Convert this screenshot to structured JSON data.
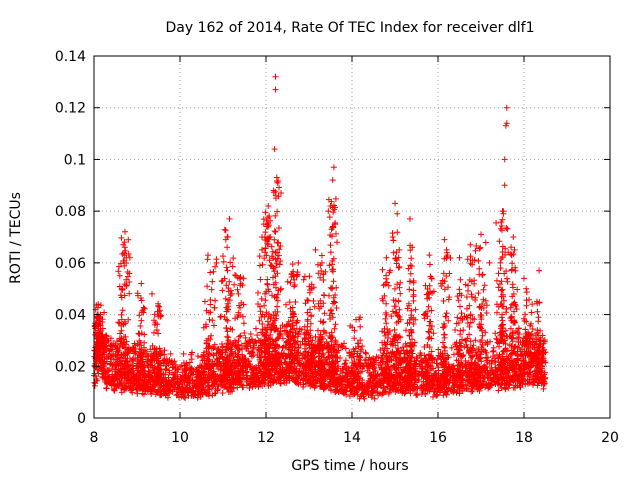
{
  "chart_data": {
    "type": "scatter",
    "title": "Day 162 of 2014, Rate Of TEC Index for receiver dlf1",
    "xlabel": "GPS time / hours",
    "ylabel": "ROTI / TECUs",
    "xlim": [
      8,
      20
    ],
    "ylim": [
      0,
      0.14
    ],
    "xticks": [
      8,
      10,
      12,
      14,
      16,
      18,
      20
    ],
    "yticks": [
      0,
      0.02,
      0.04,
      0.06,
      0.08,
      0.1,
      0.12,
      0.14
    ],
    "ytick_labels": [
      "0",
      "0.02",
      "0.04",
      "0.06",
      "0.08",
      "0.1",
      "0.12",
      "0.14"
    ],
    "grid": true,
    "marker": "+",
    "marker_color": "#ff0000",
    "data_range_hours": [
      8.0,
      18.5
    ],
    "baseline": [
      [
        8.0,
        0.016
      ],
      [
        8.1,
        0.024
      ],
      [
        8.3,
        0.018
      ],
      [
        8.6,
        0.017
      ],
      [
        9.0,
        0.016
      ],
      [
        9.5,
        0.015
      ],
      [
        10.0,
        0.013
      ],
      [
        10.5,
        0.014
      ],
      [
        11.0,
        0.016
      ],
      [
        11.5,
        0.018
      ],
      [
        12.0,
        0.02
      ],
      [
        12.5,
        0.021
      ],
      [
        13.0,
        0.019
      ],
      [
        13.5,
        0.017
      ],
      [
        14.0,
        0.014
      ],
      [
        14.5,
        0.013
      ],
      [
        15.0,
        0.016
      ],
      [
        15.5,
        0.015
      ],
      [
        16.0,
        0.014
      ],
      [
        16.5,
        0.016
      ],
      [
        17.0,
        0.017
      ],
      [
        17.5,
        0.018
      ],
      [
        18.0,
        0.019
      ],
      [
        18.3,
        0.02
      ],
      [
        18.5,
        0.018
      ]
    ],
    "notable_points": [
      {
        "x": 12.22,
        "y": 0.132
      },
      {
        "x": 12.22,
        "y": 0.127
      },
      {
        "x": 12.2,
        "y": 0.104
      },
      {
        "x": 12.25,
        "y": 0.093
      },
      {
        "x": 12.18,
        "y": 0.088
      },
      {
        "x": 12.05,
        "y": 0.082
      },
      {
        "x": 11.95,
        "y": 0.075
      },
      {
        "x": 12.1,
        "y": 0.07
      },
      {
        "x": 11.15,
        "y": 0.077
      },
      {
        "x": 11.1,
        "y": 0.07
      },
      {
        "x": 10.65,
        "y": 0.063
      },
      {
        "x": 10.85,
        "y": 0.06
      },
      {
        "x": 8.72,
        "y": 0.072
      },
      {
        "x": 8.68,
        "y": 0.067
      },
      {
        "x": 8.75,
        "y": 0.062
      },
      {
        "x": 8.6,
        "y": 0.055
      },
      {
        "x": 9.1,
        "y": 0.052
      },
      {
        "x": 9.35,
        "y": 0.048
      },
      {
        "x": 12.75,
        "y": 0.06
      },
      {
        "x": 13.15,
        "y": 0.065
      },
      {
        "x": 13.3,
        "y": 0.06
      },
      {
        "x": 13.58,
        "y": 0.097
      },
      {
        "x": 13.55,
        "y": 0.092
      },
      {
        "x": 13.5,
        "y": 0.082
      },
      {
        "x": 13.45,
        "y": 0.08
      },
      {
        "x": 13.6,
        "y": 0.075
      },
      {
        "x": 13.65,
        "y": 0.068
      },
      {
        "x": 14.8,
        "y": 0.062
      },
      {
        "x": 14.95,
        "y": 0.07
      },
      {
        "x": 15.0,
        "y": 0.083
      },
      {
        "x": 15.05,
        "y": 0.079
      },
      {
        "x": 15.1,
        "y": 0.065
      },
      {
        "x": 15.35,
        "y": 0.077
      },
      {
        "x": 15.4,
        "y": 0.066
      },
      {
        "x": 15.8,
        "y": 0.063
      },
      {
        "x": 16.15,
        "y": 0.069
      },
      {
        "x": 16.2,
        "y": 0.065
      },
      {
        "x": 16.5,
        "y": 0.062
      },
      {
        "x": 16.75,
        "y": 0.067
      },
      {
        "x": 17.0,
        "y": 0.071
      },
      {
        "x": 17.2,
        "y": 0.06
      },
      {
        "x": 17.5,
        "y": 0.08
      },
      {
        "x": 17.55,
        "y": 0.09
      },
      {
        "x": 17.55,
        "y": 0.1
      },
      {
        "x": 17.58,
        "y": 0.113
      },
      {
        "x": 17.6,
        "y": 0.114
      },
      {
        "x": 17.6,
        "y": 0.12
      },
      {
        "x": 17.52,
        "y": 0.079
      },
      {
        "x": 17.75,
        "y": 0.07
      },
      {
        "x": 17.7,
        "y": 0.066
      },
      {
        "x": 17.45,
        "y": 0.06
      },
      {
        "x": 18.0,
        "y": 0.054
      },
      {
        "x": 18.05,
        "y": 0.05
      },
      {
        "x": 18.35,
        "y": 0.057
      },
      {
        "x": 18.3,
        "y": 0.045
      },
      {
        "x": 8.1,
        "y": 0.044
      },
      {
        "x": 8.15,
        "y": 0.04
      }
    ],
    "bursts": [
      {
        "center": 8.1,
        "width": 0.15,
        "peak": 0.045,
        "count": 120
      },
      {
        "center": 8.7,
        "width": 0.15,
        "peak": 0.07,
        "count": 90
      },
      {
        "center": 9.1,
        "width": 0.12,
        "peak": 0.052,
        "count": 50
      },
      {
        "center": 9.5,
        "width": 0.12,
        "peak": 0.045,
        "count": 40
      },
      {
        "center": 10.7,
        "width": 0.15,
        "peak": 0.062,
        "count": 60
      },
      {
        "center": 11.1,
        "width": 0.2,
        "peak": 0.075,
        "count": 90
      },
      {
        "center": 11.4,
        "width": 0.15,
        "peak": 0.055,
        "count": 50
      },
      {
        "center": 12.0,
        "width": 0.2,
        "peak": 0.08,
        "count": 130
      },
      {
        "center": 12.25,
        "width": 0.12,
        "peak": 0.095,
        "count": 100
      },
      {
        "center": 12.6,
        "width": 0.18,
        "peak": 0.062,
        "count": 80
      },
      {
        "center": 13.0,
        "width": 0.15,
        "peak": 0.055,
        "count": 60
      },
      {
        "center": 13.3,
        "width": 0.12,
        "peak": 0.065,
        "count": 60
      },
      {
        "center": 13.55,
        "width": 0.12,
        "peak": 0.085,
        "count": 90
      },
      {
        "center": 14.1,
        "width": 0.15,
        "peak": 0.04,
        "count": 40
      },
      {
        "center": 14.8,
        "width": 0.15,
        "peak": 0.06,
        "count": 70
      },
      {
        "center": 15.05,
        "width": 0.12,
        "peak": 0.075,
        "count": 80
      },
      {
        "center": 15.35,
        "width": 0.15,
        "peak": 0.068,
        "count": 70
      },
      {
        "center": 15.8,
        "width": 0.15,
        "peak": 0.06,
        "count": 60
      },
      {
        "center": 16.15,
        "width": 0.15,
        "peak": 0.065,
        "count": 70
      },
      {
        "center": 16.5,
        "width": 0.12,
        "peak": 0.055,
        "count": 50
      },
      {
        "center": 16.75,
        "width": 0.15,
        "peak": 0.063,
        "count": 60
      },
      {
        "center": 17.0,
        "width": 0.15,
        "peak": 0.068,
        "count": 60
      },
      {
        "center": 17.5,
        "width": 0.15,
        "peak": 0.08,
        "count": 100
      },
      {
        "center": 17.75,
        "width": 0.12,
        "peak": 0.068,
        "count": 60
      },
      {
        "center": 18.1,
        "width": 0.15,
        "peak": 0.05,
        "count": 60
      },
      {
        "center": 18.35,
        "width": 0.12,
        "peak": 0.045,
        "count": 40
      }
    ],
    "baseline_point_count": 3400
  }
}
